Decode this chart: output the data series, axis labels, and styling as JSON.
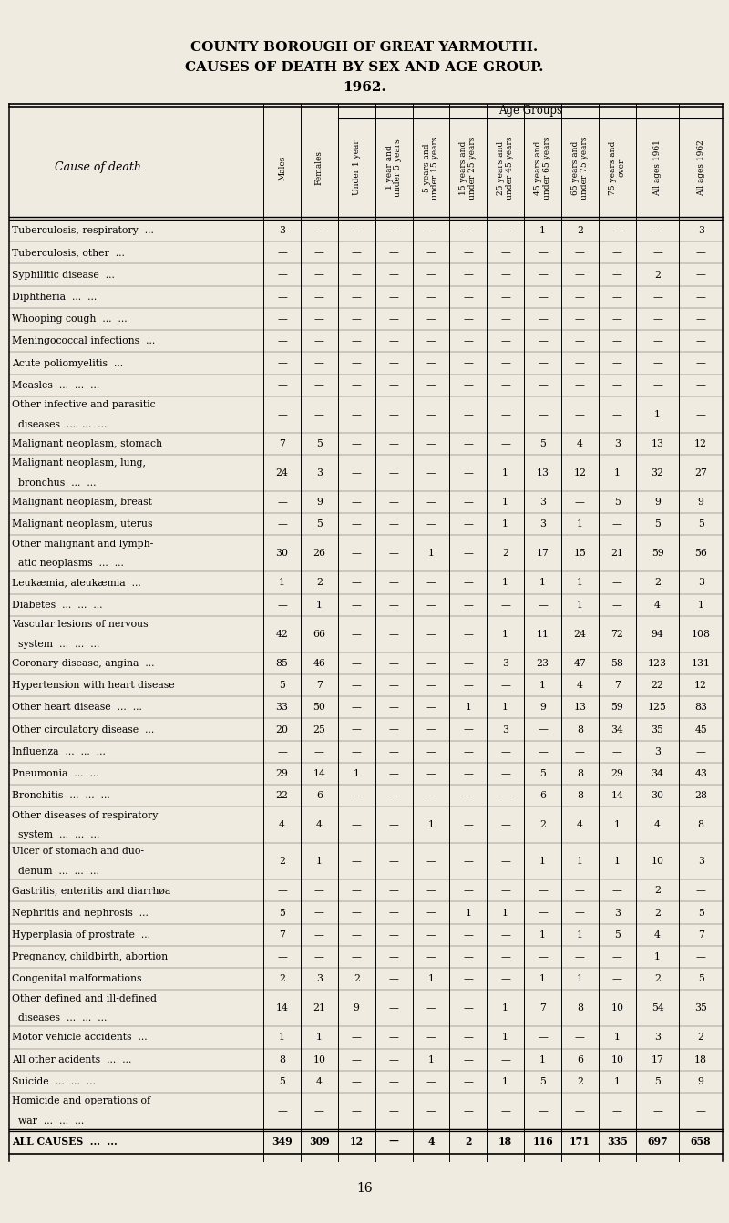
{
  "title1": "COUNTY BOROUGH OF GREAT YARMOUTH.",
  "title2": "CAUSES OF DEATH BY SEX AND AGE GROUP.",
  "title3": "1962.",
  "bg_color": "#f0ebe0",
  "col_headers_rotated": [
    "Males",
    "Females",
    "Under 1 year",
    "1 year and\nunder 5 years",
    "5 years and\nunder 15 years",
    "15 years and\nunder 25 years",
    "25 years and\nunder 45 years",
    "45 years and\nunder 65 years",
    "65 years and\nunder 75 years",
    "75 years and\nover",
    "All ages 1961",
    "All ages 1962"
  ],
  "cause_col_header": "Cause of death",
  "age_group_header": "Age Groups",
  "rows": [
    [
      "Tuberculosis, respiratory  ...",
      "3",
      "—",
      "—",
      "—",
      "—",
      "—",
      "—",
      "1",
      "2",
      "—",
      "—",
      "3"
    ],
    [
      "Tuberculosis, other  ...",
      "—",
      "—",
      "—",
      "—",
      "—",
      "—",
      "—",
      "—",
      "—",
      "—",
      "—",
      "—"
    ],
    [
      "Syphilitic disease  ...",
      "—",
      "—",
      "—",
      "—",
      "—",
      "—",
      "—",
      "—",
      "—",
      "—",
      "2",
      "—"
    ],
    [
      "Diphtheria  ...  ...",
      "—",
      "—",
      "—",
      "—",
      "—",
      "—",
      "—",
      "—",
      "—",
      "—",
      "—",
      "—"
    ],
    [
      "Whooping cough  ...  ...",
      "—",
      "—",
      "—",
      "—",
      "—",
      "—",
      "—",
      "—",
      "—",
      "—",
      "—",
      "—"
    ],
    [
      "Meningococcal infections  ...",
      "—",
      "—",
      "—",
      "—",
      "—",
      "—",
      "—",
      "—",
      "—",
      "—",
      "—",
      "—"
    ],
    [
      "Acute poliomyelitis  ...",
      "—",
      "—",
      "—",
      "—",
      "—",
      "—",
      "—",
      "—",
      "—",
      "—",
      "—",
      "—"
    ],
    [
      "Measles  ...  ...  ...",
      "—",
      "—",
      "—",
      "—",
      "—",
      "—",
      "—",
      "—",
      "—",
      "—",
      "—",
      "—"
    ],
    [
      "Other infective and parasitic\n  diseases  ...  ...  ...",
      "—",
      "—",
      "—",
      "—",
      "—",
      "—",
      "—",
      "—",
      "—",
      "—",
      "1",
      "—"
    ],
    [
      "Malignant neoplasm, stomach",
      "7",
      "5",
      "—",
      "—",
      "—",
      "—",
      "—",
      "5",
      "4",
      "3",
      "13",
      "12"
    ],
    [
      "Malignant neoplasm, lung,\n  bronchus  ...  ...",
      "24",
      "3",
      "—",
      "—",
      "—",
      "—",
      "1",
      "13",
      "12",
      "1",
      "32",
      "27"
    ],
    [
      "Malignant neoplasm, breast",
      "—",
      "9",
      "—",
      "—",
      "—",
      "—",
      "1",
      "3",
      "—",
      "5",
      "9",
      "9"
    ],
    [
      "Malignant neoplasm, uterus",
      "—",
      "5",
      "—",
      "—",
      "—",
      "—",
      "1",
      "3",
      "1",
      "—",
      "5",
      "5"
    ],
    [
      "Other malignant and lymph-\n  atic neoplasms  ...  ...",
      "30",
      "26",
      "—",
      "—",
      "1",
      "—",
      "2",
      "17",
      "15",
      "21",
      "59",
      "56"
    ],
    [
      "Leukæmia, aleukæmia  ...",
      "1",
      "2",
      "—",
      "—",
      "—",
      "—",
      "1",
      "1",
      "1",
      "—",
      "2",
      "3"
    ],
    [
      "Diabetes  ...  ...  ...",
      "—",
      "1",
      "—",
      "—",
      "—",
      "—",
      "—",
      "—",
      "1",
      "—",
      "4",
      "1"
    ],
    [
      "Vascular lesions of nervous\n  system  ...  ...  ...",
      "42",
      "66",
      "—",
      "—",
      "—",
      "—",
      "1",
      "11",
      "24",
      "72",
      "94",
      "108"
    ],
    [
      "Coronary disease, angina  ...",
      "85",
      "46",
      "—",
      "—",
      "—",
      "—",
      "3",
      "23",
      "47",
      "58",
      "123",
      "131"
    ],
    [
      "Hypertension with heart disease",
      "5",
      "7",
      "—",
      "—",
      "—",
      "—",
      "—",
      "1",
      "4",
      "7",
      "22",
      "12"
    ],
    [
      "Other heart disease  ...  ...",
      "33",
      "50",
      "—",
      "—",
      "—",
      "1",
      "1",
      "9",
      "13",
      "59",
      "125",
      "83"
    ],
    [
      "Other circulatory disease  ...",
      "20",
      "25",
      "—",
      "—",
      "—",
      "—",
      "3",
      "—",
      "8",
      "34",
      "35",
      "45"
    ],
    [
      "Influenza  ...  ...  ...",
      "—",
      "—",
      "—",
      "—",
      "—",
      "—",
      "—",
      "—",
      "—",
      "—",
      "3",
      "—"
    ],
    [
      "Pneumonia  ...  ...",
      "29",
      "14",
      "1",
      "—",
      "—",
      "—",
      "—",
      "5",
      "8",
      "29",
      "34",
      "43"
    ],
    [
      "Bronchitis  ...  ...  ...",
      "22",
      "6",
      "—",
      "—",
      "—",
      "—",
      "—",
      "6",
      "8",
      "14",
      "30",
      "28"
    ],
    [
      "Other diseases of respiratory\n  system  ...  ...  ...",
      "4",
      "4",
      "—",
      "—",
      "1",
      "—",
      "—",
      "2",
      "4",
      "1",
      "4",
      "8"
    ],
    [
      "Ulcer of stomach and duo-\n  denum  ...  ...  ...",
      "2",
      "1",
      "—",
      "—",
      "—",
      "—",
      "—",
      "1",
      "1",
      "1",
      "10",
      "3"
    ],
    [
      "Gastritis, enteritis and diarrhøa",
      "—",
      "—",
      "—",
      "—",
      "—",
      "—",
      "—",
      "—",
      "—",
      "—",
      "2",
      "—"
    ],
    [
      "Nephritis and nephrosis  ...",
      "5",
      "—",
      "—",
      "—",
      "—",
      "1",
      "1",
      "—",
      "—",
      "3",
      "2",
      "5"
    ],
    [
      "Hyperplasia of prostrate  ...",
      "7",
      "—",
      "—",
      "—",
      "—",
      "—",
      "—",
      "1",
      "1",
      "5",
      "4",
      "7"
    ],
    [
      "Pregnancy, childbirth, abortion",
      "—",
      "—",
      "—",
      "—",
      "—",
      "—",
      "—",
      "—",
      "—",
      "—",
      "1",
      "—"
    ],
    [
      "Congenital malformations",
      "2",
      "3",
      "2",
      "—",
      "1",
      "—",
      "—",
      "1",
      "1",
      "—",
      "2",
      "5"
    ],
    [
      "Other defined and ill-defined\n  diseases  ...  ...  ...",
      "14",
      "21",
      "9",
      "—",
      "—",
      "—",
      "1",
      "7",
      "8",
      "10",
      "54",
      "35"
    ],
    [
      "Motor vehicle accidents  ...",
      "1",
      "1",
      "—",
      "—",
      "—",
      "—",
      "1",
      "—",
      "—",
      "1",
      "3",
      "2"
    ],
    [
      "All other acidents  ...  ...",
      "8",
      "10",
      "—",
      "—",
      "1",
      "—",
      "—",
      "1",
      "6",
      "10",
      "17",
      "18"
    ],
    [
      "Suicide  ...  ...  ...",
      "5",
      "4",
      "—",
      "—",
      "—",
      "—",
      "1",
      "5",
      "2",
      "1",
      "5",
      "9"
    ],
    [
      "Homicide and operations of\n  war  ...  ...  ...",
      "—",
      "—",
      "—",
      "—",
      "—",
      "—",
      "—",
      "—",
      "—",
      "—",
      "—",
      "—"
    ],
    [
      "ALL CAUSES  ...  ...",
      "349",
      "309",
      "12",
      "—",
      "4",
      "2",
      "18",
      "116",
      "171",
      "335",
      "697",
      "658"
    ]
  ],
  "footer": "16"
}
